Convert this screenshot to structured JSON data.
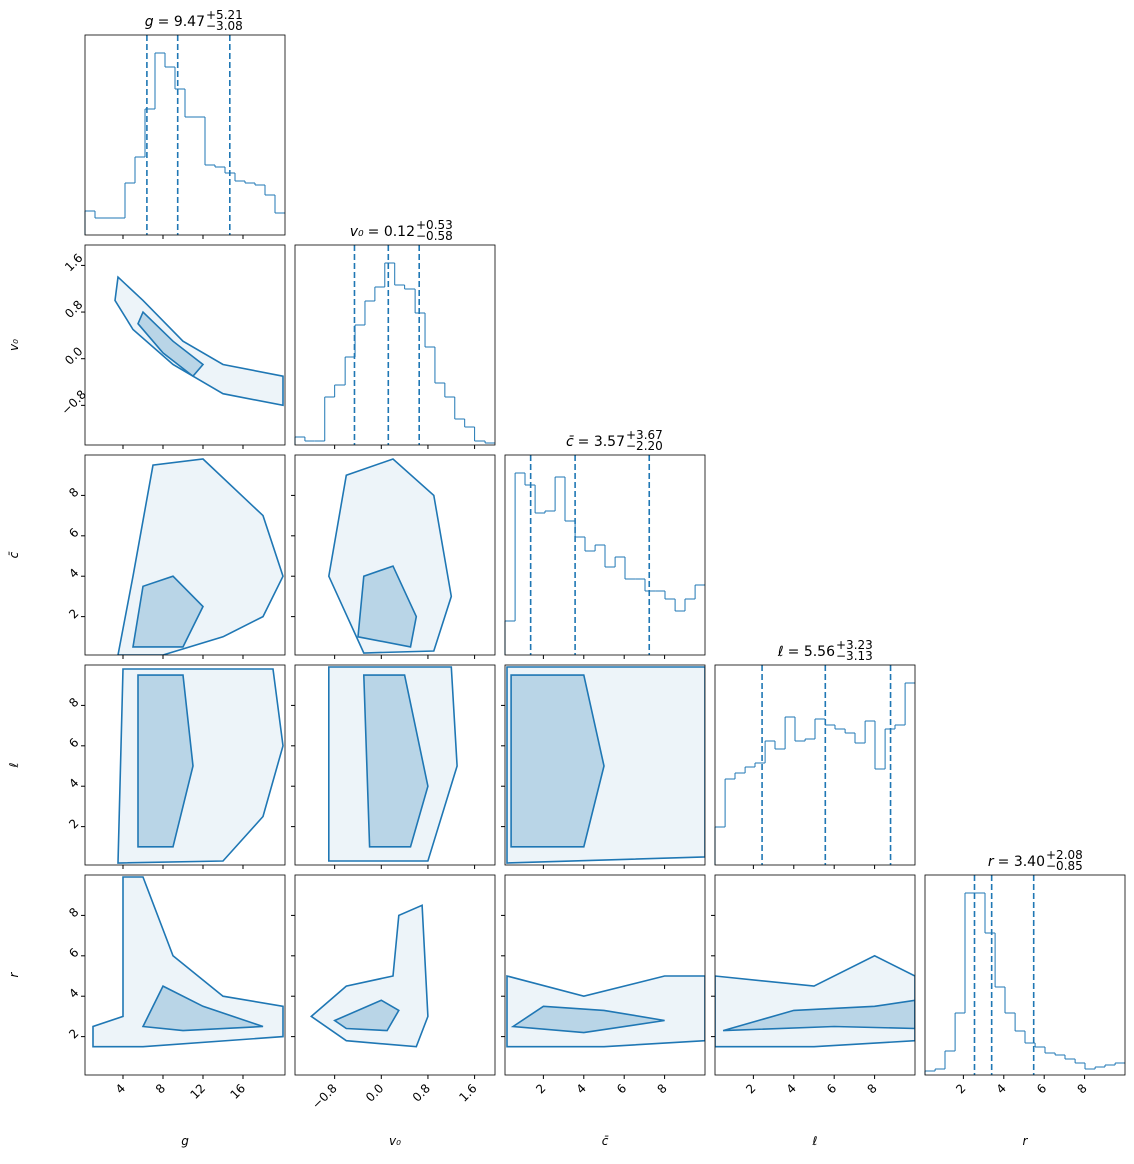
{
  "chart_data": {
    "type": "corner",
    "color": "#1f77b4",
    "params": [
      {
        "label": "g",
        "lim": [
          0.2,
          20.2
        ],
        "ticks": [
          4,
          8,
          12,
          16
        ],
        "title": {
          "text": "= 9.47",
          "plus": "+5.21",
          "minus": "−3.08"
        },
        "quantiles": [
          6.39,
          9.47,
          14.68
        ],
        "hist_ylim": [
          0,
          100
        ],
        "bins": [
          0.2,
          1.2,
          2.2,
          3.2,
          4.2,
          5.2,
          6.2,
          7.2,
          8.2,
          9.2,
          10.2,
          11.2,
          12.2,
          13.2,
          14.2,
          15.2,
          16.2,
          17.2,
          18.2,
          19.2,
          20.2
        ],
        "counts": [
          12,
          8.5,
          8.5,
          8.5,
          26,
          39,
          63,
          91,
          84,
          73,
          59,
          59,
          35,
          34,
          31,
          27,
          26,
          25,
          20,
          11
        ]
      },
      {
        "label": "v₀",
        "lim": [
          -1.48,
          1.95
        ],
        "ticks": [
          {
            "value": -0.8,
            "label": "−0.8"
          },
          {
            "value": 0,
            "label": "0.0"
          },
          0.8,
          1.6
        ],
        "title": {
          "text": "= 0.12",
          "plus": "+0.53",
          "minus": "−0.58"
        },
        "quantiles": [
          -0.46,
          0.12,
          0.65
        ],
        "hist_ylim": [
          0,
          100
        ],
        "bins": [
          -1.48,
          -1.31,
          -1.14,
          -0.97,
          -0.8,
          -0.62,
          -0.45,
          -0.28,
          -0.11,
          0.06,
          0.23,
          0.4,
          0.58,
          0.75,
          0.92,
          1.09,
          1.26,
          1.43,
          1.6,
          1.78,
          1.95
        ],
        "counts": [
          4,
          2,
          2,
          24,
          30,
          44,
          60,
          72,
          79,
          91,
          80,
          78,
          66,
          49,
          31,
          24,
          13,
          9,
          2,
          1
        ]
      },
      {
        "label": "c̄",
        "lim": [
          0.1,
          10
        ],
        "ticks": [
          2,
          4,
          6,
          8
        ],
        "title": {
          "text": "= 3.57",
          "plus": "+3.67",
          "minus": "−2.20"
        },
        "quantiles": [
          1.37,
          3.57,
          7.24
        ],
        "hist_ylim": [
          0,
          100
        ],
        "bins": [
          0.1,
          0.6,
          1.09,
          1.59,
          2.08,
          2.58,
          3.07,
          3.57,
          4.06,
          4.56,
          5.05,
          5.55,
          6.04,
          6.54,
          7.03,
          7.53,
          8.02,
          8.52,
          9.01,
          9.51,
          10.0
        ],
        "counts": [
          17,
          91,
          85,
          71,
          72,
          89,
          67,
          59,
          52,
          55,
          44,
          49,
          38,
          38,
          32,
          32,
          28,
          22,
          28,
          35
        ]
      },
      {
        "label": "ℓ",
        "lim": [
          0.1,
          10
        ],
        "ticks": [
          2,
          4,
          6,
          8
        ],
        "title": {
          "text": "= 5.56",
          "plus": "+3.23",
          "minus": "−3.13"
        },
        "quantiles": [
          2.43,
          5.56,
          8.79
        ],
        "hist_ylim": [
          0,
          100
        ],
        "bins": [
          0.1,
          0.6,
          1.09,
          1.59,
          2.08,
          2.58,
          3.07,
          3.57,
          4.06,
          4.56,
          5.05,
          5.55,
          6.04,
          6.54,
          7.03,
          7.53,
          8.02,
          8.52,
          9.01,
          9.51,
          10.0
        ],
        "counts": [
          19,
          43,
          46,
          49,
          51,
          62,
          58,
          74,
          62,
          63,
          73,
          70,
          68,
          66,
          61,
          72,
          48,
          68,
          70,
          91
        ]
      },
      {
        "label": "r",
        "lim": [
          0.1,
          10
        ],
        "ticks": [
          2,
          4,
          6,
          8
        ],
        "title": {
          "text": "= 3.40",
          "plus": "+2.08",
          "minus": "−0.85"
        },
        "quantiles": [
          2.55,
          3.4,
          5.48
        ],
        "hist_ylim": [
          0,
          100
        ],
        "bins": [
          0.1,
          0.6,
          1.09,
          1.59,
          2.08,
          2.58,
          3.07,
          3.57,
          4.06,
          4.56,
          5.05,
          5.55,
          6.04,
          6.54,
          7.03,
          7.53,
          8.02,
          8.52,
          9.01,
          9.51,
          10.0
        ],
        "counts": [
          2,
          3,
          12,
          31,
          91,
          91,
          71,
          44,
          31,
          22,
          16,
          14,
          11,
          10,
          8,
          6,
          3,
          4,
          5,
          6
        ]
      }
    ],
    "pairs": [
      {
        "row": 1,
        "col": 0,
        "contours": [
          {
            "x": [
              3.5,
              6,
              10,
              14,
              20,
              20,
              14,
              9,
              5,
              3.2
            ],
            "y": [
              1.4,
              1.0,
              0.3,
              -0.1,
              -0.3,
              -0.8,
              -0.6,
              -0.1,
              0.5,
              1.0
            ]
          },
          {
            "x": [
              6,
              9,
              12,
              11,
              8,
              5.5
            ],
            "y": [
              0.8,
              0.3,
              -0.1,
              -0.3,
              0.1,
              0.6
            ]
          }
        ]
      },
      {
        "row": 2,
        "col": 0,
        "contours": [
          {
            "x": [
              3.5,
              5,
              7,
              12,
              18,
              20,
              18,
              14,
              8
            ],
            "y": [
              0.1,
              4,
              9.5,
              9.8,
              7,
              4,
              2,
              1,
              0.1
            ]
          },
          {
            "x": [
              5,
              6,
              9,
              12,
              10
            ],
            "y": [
              0.5,
              3.5,
              4,
              2.5,
              0.5
            ]
          }
        ]
      },
      {
        "row": 2,
        "col": 1,
        "contours": [
          {
            "x": [
              -0.9,
              -0.6,
              0.2,
              0.9,
              1.2,
              0.9,
              -0.3
            ],
            "y": [
              4,
              9,
              9.8,
              8,
              3,
              0.3,
              0.2
            ]
          },
          {
            "x": [
              -0.4,
              -0.3,
              0.2,
              0.6,
              0.5
            ],
            "y": [
              1,
              4,
              4.5,
              2,
              0.5
            ]
          }
        ]
      },
      {
        "row": 3,
        "col": 0,
        "contours": [
          {
            "x": [
              3.5,
              4,
              19,
              20,
              18,
              14
            ],
            "y": [
              0.2,
              9.8,
              9.8,
              6,
              2.5,
              0.3
            ]
          },
          {
            "x": [
              5.5,
              5.5,
              10,
              11,
              9
            ],
            "y": [
              1,
              9.5,
              9.5,
              5,
              1
            ]
          }
        ]
      },
      {
        "row": 3,
        "col": 1,
        "contours": [
          {
            "x": [
              -0.9,
              -0.9,
              1.2,
              1.3,
              0.8
            ],
            "y": [
              0.3,
              9.9,
              9.9,
              5,
              0.3
            ]
          },
          {
            "x": [
              -0.2,
              -0.3,
              0.4,
              0.8,
              0.5
            ],
            "y": [
              1,
              9.5,
              9.5,
              4,
              1
            ]
          }
        ]
      },
      {
        "row": 3,
        "col": 2,
        "contours": [
          {
            "x": [
              0.2,
              0.2,
              10,
              10
            ],
            "y": [
              0.2,
              9.9,
              9.9,
              0.5
            ]
          },
          {
            "x": [
              0.4,
              0.4,
              4,
              5,
              4
            ],
            "y": [
              1,
              9.5,
              9.5,
              5,
              1
            ]
          }
        ]
      },
      {
        "row": 4,
        "col": 0,
        "contours": [
          {
            "x": [
              4,
              4,
              1,
              1,
              6,
              20,
              20,
              14,
              9,
              6
            ],
            "y": [
              9.9,
              3,
              2.5,
              1.5,
              1.5,
              2,
              3.5,
              4,
              6,
              9.9
            ]
          },
          {
            "x": [
              6,
              8,
              12,
              18,
              10
            ],
            "y": [
              2.5,
              4.5,
              3.5,
              2.5,
              2.3
            ]
          }
        ]
      },
      {
        "row": 4,
        "col": 1,
        "contours": [
          {
            "x": [
              -1.2,
              -0.6,
              0.2,
              0.3,
              0.7,
              0.8,
              0.6,
              -0.6
            ],
            "y": [
              3,
              4.5,
              5,
              8,
              8.5,
              3,
              1.5,
              1.8
            ]
          },
          {
            "x": [
              -0.8,
              0,
              0.3,
              0.1,
              -0.6
            ],
            "y": [
              2.8,
              3.8,
              3.3,
              2.3,
              2.4
            ]
          }
        ]
      },
      {
        "row": 4,
        "col": 2,
        "contours": [
          {
            "x": [
              0.2,
              0.2,
              4,
              8,
              10,
              10,
              5
            ],
            "y": [
              1.5,
              5,
              4,
              5,
              5,
              1.8,
              1.5
            ]
          },
          {
            "x": [
              0.5,
              2,
              5,
              8,
              4
            ],
            "y": [
              2.5,
              3.5,
              3.3,
              2.8,
              2.2
            ]
          }
        ]
      },
      {
        "row": 4,
        "col": 3,
        "contours": [
          {
            "x": [
              0.1,
              0.1,
              5,
              8,
              10,
              10,
              5
            ],
            "y": [
              1.5,
              5,
              4.5,
              6,
              5,
              1.8,
              1.5
            ]
          },
          {
            "x": [
              0.5,
              4,
              8,
              10,
              10,
              6
            ],
            "y": [
              2.3,
              3.3,
              3.5,
              3.8,
              2.4,
              2.5
            ]
          }
        ]
      }
    ]
  }
}
